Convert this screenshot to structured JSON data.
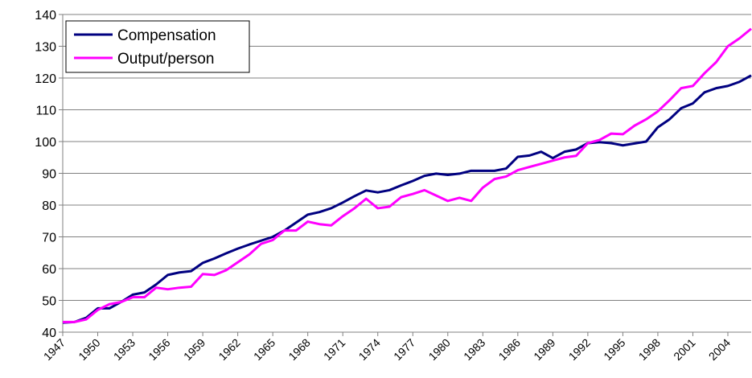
{
  "chart_data": {
    "type": "line",
    "categories": [
      "1947",
      null,
      null,
      "1950",
      null,
      null,
      "1953",
      null,
      null,
      "1956",
      null,
      null,
      "1959",
      null,
      null,
      "1962",
      null,
      null,
      "1965",
      null,
      null,
      "1968",
      null,
      null,
      "1971",
      null,
      null,
      "1974",
      null,
      null,
      "1977",
      null,
      null,
      "1980",
      null,
      null,
      "1983",
      null,
      null,
      "1986",
      null,
      null,
      "1989",
      null,
      null,
      "1992",
      null,
      null,
      "1995",
      null,
      null,
      "1998",
      null,
      null,
      "2001",
      null,
      null,
      "2004",
      null,
      null
    ],
    "series": [
      {
        "name": "Compensation",
        "color": "#000080",
        "values": [
          43,
          43.2,
          44.5,
          47.5,
          47.5,
          49.5,
          51.8,
          52.5,
          55,
          58,
          58.8,
          59.2,
          61.8,
          63.2,
          64.8,
          66.3,
          67.6,
          68.8,
          70,
          72,
          74.5,
          77,
          77.8,
          79,
          80.8,
          82.8,
          84.6,
          84,
          84.7,
          86.2,
          87.6,
          89.2,
          89.9,
          89.5,
          89.9,
          90.8,
          90.8,
          90.8,
          91.5,
          95.2,
          95.6,
          96.8,
          94.8,
          96.8,
          97.5,
          99.5,
          99.8,
          99.5,
          98.8,
          99.4,
          100,
          104.5,
          107,
          110.5,
          112,
          115.5,
          116.8,
          117.5,
          118.8,
          120.8
        ]
      },
      {
        "name": "Output/person",
        "color": "#ff00ff",
        "values": [
          43.2,
          43.2,
          44,
          47,
          48.8,
          49.5,
          51,
          51,
          54,
          53.5,
          54,
          54.3,
          58.3,
          58,
          59.5,
          62,
          64.5,
          67.8,
          69,
          72,
          72,
          74.8,
          74,
          73.6,
          76.5,
          79,
          82,
          79,
          79.5,
          82.5,
          83.5,
          84.7,
          83,
          81.3,
          82.3,
          81.3,
          85.5,
          88.2,
          89,
          91,
          92,
          93,
          94,
          95,
          95.5,
          99.5,
          100.5,
          102.5,
          102.3,
          105,
          107,
          109.5,
          113,
          116.8,
          117.5,
          121.5,
          125,
          130,
          132.5,
          135.5
        ]
      }
    ],
    "ylim": [
      40,
      140
    ],
    "yticks": [
      40,
      50,
      60,
      70,
      80,
      90,
      100,
      110,
      120,
      130,
      140
    ],
    "grid": true,
    "legend": "top-left"
  }
}
